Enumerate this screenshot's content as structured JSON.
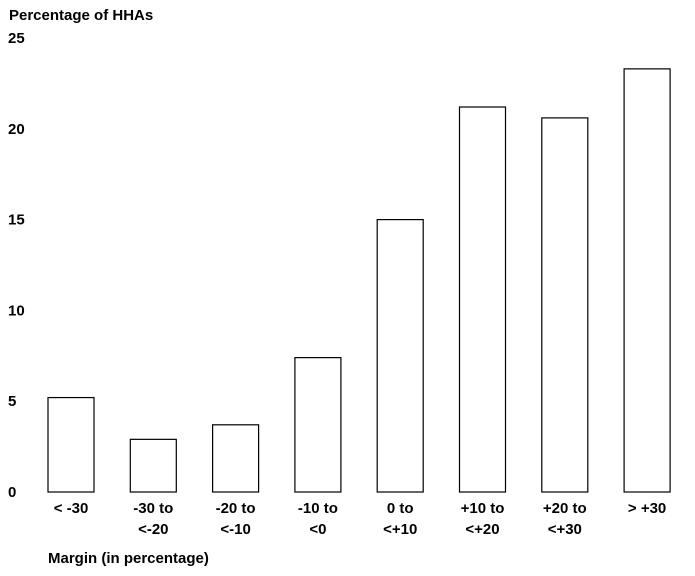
{
  "chart_data": {
    "type": "bar",
    "title": "",
    "ylabel": "Percentage of HHAs",
    "xlabel": "Margin (in percentage)",
    "ylim": [
      0,
      25
    ],
    "yticks": [
      "0",
      "5",
      "10",
      "15",
      "20",
      "25"
    ],
    "categories": [
      [
        "< -30"
      ],
      [
        "-30 to",
        "<-20"
      ],
      [
        "-20 to",
        "<-10"
      ],
      [
        "-10 to",
        "<0"
      ],
      [
        "0 to",
        "<+10"
      ],
      [
        "+10 to",
        "<+20"
      ],
      [
        "+20 to",
        "<+30"
      ],
      [
        "> +30"
      ]
    ],
    "values": [
      5.2,
      2.9,
      3.7,
      7.4,
      15.0,
      21.2,
      20.6,
      23.3
    ],
    "grid": false,
    "legend": "none"
  }
}
